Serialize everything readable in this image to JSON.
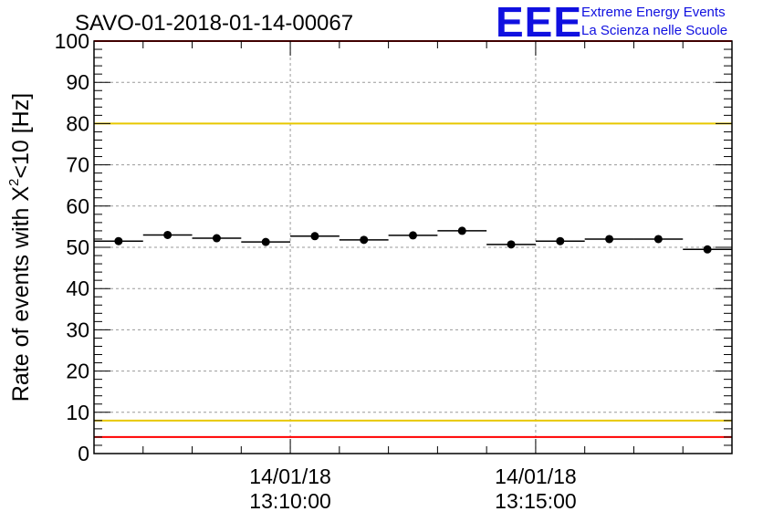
{
  "chart_data": {
    "type": "scatter",
    "title": "SAVO-01-2018-01-14-00067",
    "ylabel_main": "Rate of events with X",
    "ylabel_sup": "2",
    "ylabel_tail": "<10 [Hz]",
    "xlabel": "",
    "ylim": [
      0,
      100
    ],
    "yticks": [
      0,
      10,
      20,
      30,
      40,
      50,
      60,
      70,
      80,
      90,
      100
    ],
    "xlim_min": [
      6.0,
      19.0
    ],
    "xticks": [
      {
        "min": 10,
        "date": "14/01/18",
        "time": "13:10:00"
      },
      {
        "min": 15,
        "date": "14/01/18",
        "time": "13:15:00"
      }
    ],
    "bin_width_min": 1.0,
    "points": [
      {
        "x": 6.5,
        "y": 51.5
      },
      {
        "x": 7.5,
        "y": 53.0
      },
      {
        "x": 8.5,
        "y": 52.2
      },
      {
        "x": 9.5,
        "y": 51.3
      },
      {
        "x": 10.5,
        "y": 52.7
      },
      {
        "x": 11.5,
        "y": 51.8
      },
      {
        "x": 12.5,
        "y": 52.9
      },
      {
        "x": 13.5,
        "y": 54.0
      },
      {
        "x": 14.5,
        "y": 50.7
      },
      {
        "x": 15.5,
        "y": 51.5
      },
      {
        "x": 16.5,
        "y": 52.0
      },
      {
        "x": 17.5,
        "y": 52.0
      },
      {
        "x": 18.5,
        "y": 49.5
      }
    ],
    "reference_lines": [
      {
        "y": 100,
        "color": "#ff0000"
      },
      {
        "y": 80,
        "color": "#e8c800"
      },
      {
        "y": 8,
        "color": "#e8c800"
      },
      {
        "y": 4,
        "color": "#ff0000"
      }
    ],
    "grid": true
  },
  "logo": {
    "mark": "EEE",
    "line1": "Extreme Energy Events",
    "line2": "La Scienza nelle Scuole",
    "color": "#1010e0"
  }
}
